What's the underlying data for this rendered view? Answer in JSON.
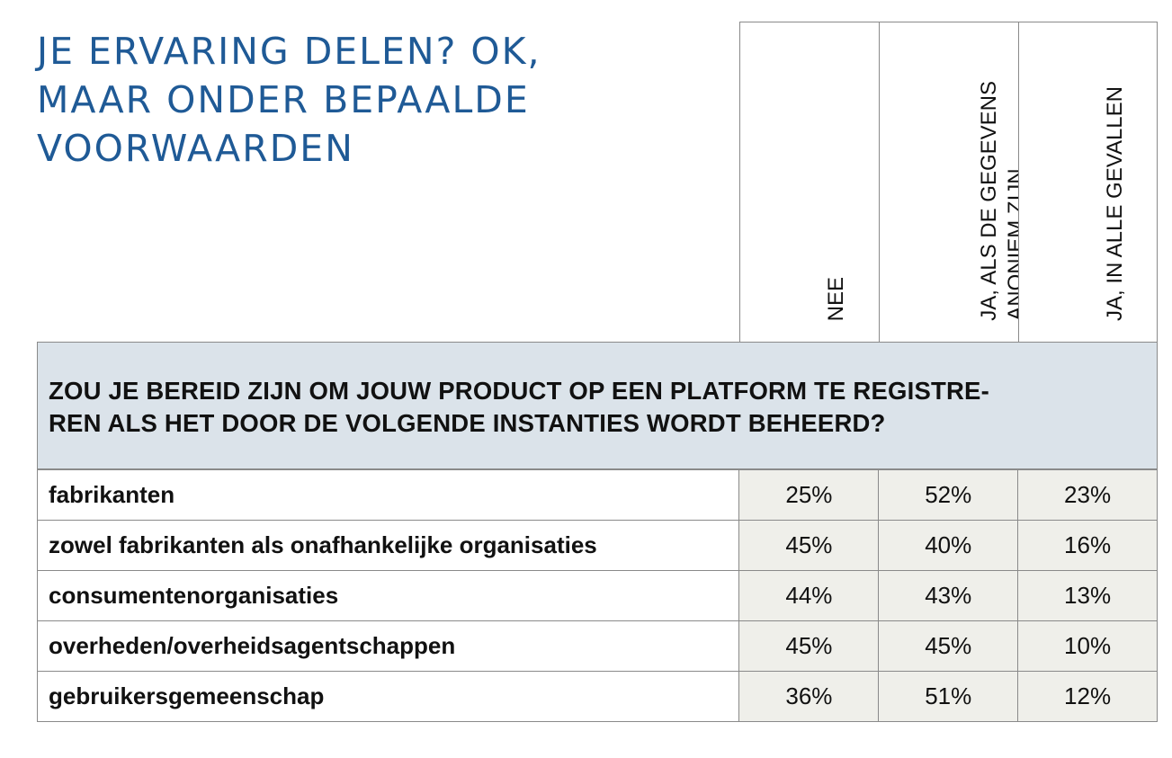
{
  "title_lines": [
    "JE ERVARING DELEN? OK,",
    "MAAR ONDER BEPAALDE",
    "VOORWAARDEN"
  ],
  "question": "ZOU JE BEREID ZIJN OM JOUW PRODUCT OP EEN PLATFORM TE REGISTRE-REN ALS HET DOOR DE VOLGENDE INSTANTIES WORDT BEHEERD?",
  "question_lines": [
    "ZOU JE BEREID ZIJN OM JOUW PRODUCT OP EEN PLATFORM TE REGISTRE-",
    "REN ALS HET DOOR DE VOLGENDE INSTANTIES WORDT BEHEERD?"
  ],
  "columns": [
    "NEE",
    "JA, ALS DE GEGEVENS\nANONIEM ZIJN",
    "JA, IN ALLE GEVALLEN"
  ],
  "rows": [
    {
      "label": "fabrikanten",
      "values": [
        "25%",
        "52%",
        "23%"
      ]
    },
    {
      "label": "zowel fabrikanten als onafhankelijke organisaties",
      "values": [
        "45%",
        "40%",
        "16%"
      ]
    },
    {
      "label": "consumentenorganisaties",
      "values": [
        "44%",
        "43%",
        "13%"
      ]
    },
    {
      "label": "overheden/overheidsagentschappen",
      "values": [
        "45%",
        "45%",
        "10%"
      ]
    },
    {
      "label": "gebruikersgemeenschap",
      "values": [
        "36%",
        "51%",
        "12%"
      ]
    }
  ],
  "colors": {
    "title": "#1f5a96",
    "question_bg": "#dbe3ea",
    "value_bg": "#efefea",
    "border": "#8a8a8a"
  },
  "chart_data": {
    "type": "table",
    "title": "JE ERVARING DELEN? OK, MAAR ONDER BEPAALDE VOORWAARDEN",
    "subtitle": "ZOU JE BEREID ZIJN OM JOUW PRODUCT OP EEN PLATFORM TE REGISTRE-REN ALS HET DOOR DE VOLGENDE INSTANTIES WORDT BEHEERD?",
    "categories": [
      "fabrikanten",
      "zowel fabrikanten als onafhankelijke organisaties",
      "consumentenorganisaties",
      "overheden/overheidsagentschappen",
      "gebruikersgemeenschap"
    ],
    "series": [
      {
        "name": "NEE",
        "values": [
          25,
          45,
          44,
          45,
          36
        ]
      },
      {
        "name": "JA, ALS DE GEGEVENS ANONIEM ZIJN",
        "values": [
          52,
          40,
          43,
          45,
          51
        ]
      },
      {
        "name": "JA, IN ALLE GEVALLEN",
        "values": [
          23,
          16,
          13,
          10,
          12
        ]
      }
    ]
  }
}
